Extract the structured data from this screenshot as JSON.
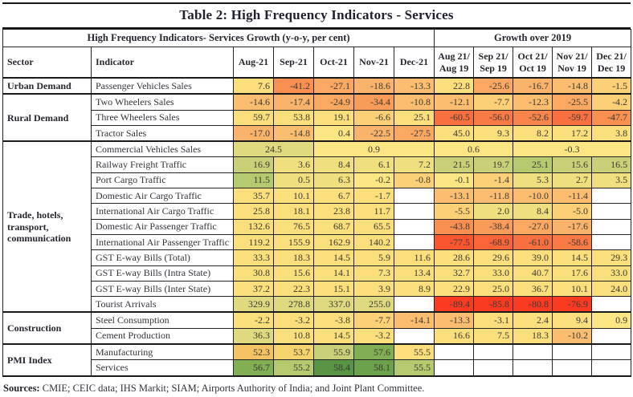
{
  "title": "Table 2: High Frequency Indicators - Services",
  "header": {
    "group_left": "High Frequency Indicators- Services Growth  (y-o-y, per cent)",
    "group_right": "Growth over 2019",
    "sector": "Sector",
    "indicator": "Indicator",
    "months": [
      "Aug-21",
      "Sep-21",
      "Oct-21",
      "Nov-21",
      "Dec-21"
    ],
    "growth": [
      {
        "l1": "Aug 21/",
        "l2": "Aug 19"
      },
      {
        "l1": "Sep 21/",
        "l2": "Sep 19"
      },
      {
        "l1": "Oct 21/",
        "l2": "Oct 19"
      },
      {
        "l1": "Nov 21/",
        "l2": "Nov 19"
      },
      {
        "l1": "Dec 21/",
        "l2": "Dec 19"
      }
    ]
  },
  "palette": {
    "w": "#FFFFFF",
    "r1": "#FB3A22",
    "rA": "#F9552F",
    "rB": "#F96438",
    "oA": "#F87040",
    "oB": "#F87A45",
    "oC": "#F8854B",
    "oD": "#F99051",
    "oE": "#F99B59",
    "oF": "#FAA862",
    "oG": "#FAB36B",
    "oH": "#FBBE71",
    "yO": "#FCD077",
    "y": "#FBDF7D",
    "yG": "#EFDF7E",
    "y2": "#FCE684",
    "gy1": "#DFDA7F",
    "gy2": "#C9D077",
    "gy3": "#B5C96E",
    "g2": "#82AE54",
    "g3": "#6CA24C",
    "g4": "#5A9546",
    "tA": "#F3C364",
    "tB": "#F5D46D"
  },
  "sections": [
    {
      "sector": "Urban Demand",
      "rows": [
        {
          "indicator": "Passenger Vehicles Sales",
          "cells": [
            [
              "7.6",
              "y"
            ],
            [
              "-41.2",
              "oD"
            ],
            [
              "-27.1",
              "oF"
            ],
            [
              "-18.6",
              "oG"
            ],
            [
              "-13.3",
              "oH"
            ],
            [
              "22.8",
              "y"
            ],
            [
              "-25.6",
              "oF"
            ],
            [
              "-16.7",
              "oG"
            ],
            [
              "-14.8",
              "oH"
            ],
            [
              "-1.5",
              "yO"
            ]
          ]
        }
      ]
    },
    {
      "sector": "Rural Demand",
      "rows": [
        {
          "indicator": "Two Wheelers Sales",
          "cells": [
            [
              "-14.6",
              "oH"
            ],
            [
              "-17.4",
              "oG"
            ],
            [
              "-24.9",
              "oF"
            ],
            [
              "-34.4",
              "oE"
            ],
            [
              "-10.8",
              "oH"
            ],
            [
              "-12.1",
              "oH"
            ],
            [
              "-7.7",
              "yO"
            ],
            [
              "-12.3",
              "oH"
            ],
            [
              "-25.5",
              "oF"
            ],
            [
              "-4.2",
              "yO"
            ]
          ]
        },
        {
          "indicator": "Three Wheelers Sales",
          "cells": [
            [
              "59.7",
              "y"
            ],
            [
              "53.8",
              "y"
            ],
            [
              "19.1",
              "y"
            ],
            [
              "-6.6",
              "yO"
            ],
            [
              "25.1",
              "y"
            ],
            [
              "-60.5",
              "oA"
            ],
            [
              "-56.0",
              "oB"
            ],
            [
              "-52.6",
              "oC"
            ],
            [
              "-59.7",
              "oA"
            ],
            [
              "-47.7",
              "oD"
            ]
          ]
        },
        {
          "indicator": "Tractor Sales",
          "cells": [
            [
              "-17.0",
              "oG"
            ],
            [
              "-14.8",
              "oH"
            ],
            [
              "0.4",
              "y2"
            ],
            [
              "-22.5",
              "oG"
            ],
            [
              "-27.5",
              "oF"
            ],
            [
              "45.0",
              "y"
            ],
            [
              "9.3",
              "y"
            ],
            [
              "8.2",
              "y"
            ],
            [
              "17.2",
              "y"
            ],
            [
              "3.8",
              "y"
            ]
          ]
        }
      ]
    },
    {
      "sector": "Trade, hotels, transport, communication",
      "rows": [
        {
          "indicator": "Commercial Vehicles Sales",
          "cells": [
            [
              "24.5",
              "gy1",
              2
            ],
            [
              "0.9",
              "y2",
              3
            ],
            [
              "0.6",
              "y2",
              2
            ],
            [
              "-0.3",
              "y2",
              3
            ]
          ]
        },
        {
          "indicator": "Railway Freight Traffic",
          "cells": [
            [
              "16.9",
              "gy2"
            ],
            [
              "3.6",
              "yG"
            ],
            [
              "8.4",
              "yG"
            ],
            [
              "6.1",
              "yG"
            ],
            [
              "7.2",
              "yG"
            ],
            [
              "21.5",
              "gy2"
            ],
            [
              "19.7",
              "gy2"
            ],
            [
              "25.1",
              "gy3"
            ],
            [
              "15.6",
              "gy2"
            ],
            [
              "16.5",
              "gy2"
            ]
          ]
        },
        {
          "indicator": "Port Cargo Traffic",
          "cells": [
            [
              "11.5",
              "gy3"
            ],
            [
              "0.5",
              "yG"
            ],
            [
              "6.3",
              "yG"
            ],
            [
              "-0.2",
              "y2"
            ],
            [
              "-0.8",
              "yO"
            ],
            [
              "-0.1",
              "y2"
            ],
            [
              "-1.4",
              "yO"
            ],
            [
              "5.3",
              "yG"
            ],
            [
              "2.7",
              "yG"
            ],
            [
              "3.5",
              "yG"
            ]
          ]
        },
        {
          "indicator": "Domestic Air Cargo Traffic",
          "cells": [
            [
              "35.7",
              "y"
            ],
            [
              "10.1",
              "y"
            ],
            [
              "6.7",
              "y"
            ],
            [
              "-1.7",
              "y"
            ],
            [
              "",
              "w"
            ],
            [
              "-13.1",
              "oH"
            ],
            [
              "-11.8",
              "oH"
            ],
            [
              "-10.0",
              "oH"
            ],
            [
              "-11.4",
              "oH"
            ],
            [
              "",
              "w"
            ]
          ]
        },
        {
          "indicator": "International Air Cargo Traffic",
          "cells": [
            [
              "25.8",
              "y"
            ],
            [
              "18.1",
              "y"
            ],
            [
              "23.8",
              "y"
            ],
            [
              "11.7",
              "y"
            ],
            [
              "",
              "w"
            ],
            [
              "-5.5",
              "yO"
            ],
            [
              "2.0",
              "yG"
            ],
            [
              "8.4",
              "yG"
            ],
            [
              "-5.0",
              "yO"
            ],
            [
              "",
              "w"
            ]
          ]
        },
        {
          "indicator": "Domestic Air Passenger Traffic",
          "cells": [
            [
              "132.6",
              "y"
            ],
            [
              "76.5",
              "y"
            ],
            [
              "68.7",
              "y"
            ],
            [
              "65.5",
              "y"
            ],
            [
              "",
              "w"
            ],
            [
              "-43.8",
              "oD"
            ],
            [
              "-38.4",
              "oE"
            ],
            [
              "-27.0",
              "oF"
            ],
            [
              "-17.6",
              "oG"
            ],
            [
              "",
              "w"
            ]
          ]
        },
        {
          "indicator": "International Air Passenger Traffic",
          "cells": [
            [
              "119.2",
              "y"
            ],
            [
              "155.9",
              "y"
            ],
            [
              "162.9",
              "y"
            ],
            [
              "140.2",
              "y"
            ],
            [
              "",
              "w"
            ],
            [
              "-77.5",
              "rA"
            ],
            [
              "-68.9",
              "rB"
            ],
            [
              "-61.0",
              "oA"
            ],
            [
              "-58.6",
              "oB"
            ],
            [
              "",
              "w"
            ]
          ]
        },
        {
          "indicator": "GST E-way Bills (Total)",
          "cells": [
            [
              "33.3",
              "y"
            ],
            [
              "18.3",
              "y"
            ],
            [
              "14.5",
              "y"
            ],
            [
              "5.9",
              "y"
            ],
            [
              "11.6",
              "y"
            ],
            [
              "28.6",
              "y"
            ],
            [
              "29.6",
              "y"
            ],
            [
              "39.0",
              "y"
            ],
            [
              "14.5",
              "y"
            ],
            [
              "29.3",
              "y"
            ]
          ]
        },
        {
          "indicator": "GST E-way Bills (Intra State)",
          "cells": [
            [
              "30.8",
              "y"
            ],
            [
              "15.6",
              "y"
            ],
            [
              "14.1",
              "y"
            ],
            [
              "7.3",
              "y"
            ],
            [
              "13.4",
              "y"
            ],
            [
              "32.7",
              "y"
            ],
            [
              "33.0",
              "y"
            ],
            [
              "40.7",
              "y"
            ],
            [
              "17.6",
              "y"
            ],
            [
              "33.0",
              "y"
            ]
          ]
        },
        {
          "indicator": "GST E-way Bills (Inter State)",
          "cells": [
            [
              "37.2",
              "y"
            ],
            [
              "22.3",
              "y"
            ],
            [
              "15.1",
              "y"
            ],
            [
              "3.9",
              "y"
            ],
            [
              "8.9",
              "y"
            ],
            [
              "22.9",
              "y"
            ],
            [
              "25.0",
              "y"
            ],
            [
              "36.7",
              "y"
            ],
            [
              "10.1",
              "y"
            ],
            [
              "24.0",
              "y"
            ]
          ]
        },
        {
          "indicator": "Tourist Arrivals",
          "cells": [
            [
              "329.9",
              "gy1"
            ],
            [
              "278.8",
              "gy1"
            ],
            [
              "337.0",
              "gy1"
            ],
            [
              "255.0",
              "gy1"
            ],
            [
              "",
              "w"
            ],
            [
              "-89.4",
              "r1"
            ],
            [
              "-85.8",
              "r1"
            ],
            [
              "-80.8",
              "r1"
            ],
            [
              "-76.9",
              "r1"
            ],
            [
              "",
              "w"
            ]
          ]
        }
      ]
    },
    {
      "sector": "Construction",
      "rows": [
        {
          "indicator": "Steel Consumption",
          "cells": [
            [
              "-2.2",
              "y"
            ],
            [
              "-3.2",
              "y"
            ],
            [
              "-3.8",
              "y"
            ],
            [
              "-7.7",
              "yO"
            ],
            [
              "-14.1",
              "oH"
            ],
            [
              "-13.3",
              "oH"
            ],
            [
              "-3.1",
              "y"
            ],
            [
              "2.4",
              "y"
            ],
            [
              "9.4",
              "y"
            ],
            [
              "0.9",
              "y2"
            ]
          ]
        },
        {
          "indicator": "Cement Production",
          "cells": [
            [
              "36.3",
              "gy1"
            ],
            [
              "10.8",
              "y"
            ],
            [
              "14.5",
              "y"
            ],
            [
              "-3.2",
              "y"
            ],
            [
              "",
              "w"
            ],
            [
              "16.6",
              "y"
            ],
            [
              "7.5",
              "y"
            ],
            [
              "18.3",
              "y"
            ],
            [
              "-10.2",
              "oH"
            ],
            [
              "",
              "w"
            ]
          ]
        }
      ]
    },
    {
      "sector": "PMI Index",
      "rows": [
        {
          "indicator": "Manufacturing",
          "cells": [
            [
              "52.3",
              "tA"
            ],
            [
              "53.7",
              "tB"
            ],
            [
              "55.9",
              "gy2"
            ],
            [
              "57.6",
              "g2"
            ],
            [
              "55.5",
              "y"
            ],
            [
              "",
              "w"
            ],
            [
              "",
              "w"
            ],
            [
              "",
              "w"
            ],
            [
              "",
              "w"
            ],
            [
              "",
              "w"
            ]
          ]
        },
        {
          "indicator": "Services",
          "cells": [
            [
              "56.7",
              "g2"
            ],
            [
              "55.2",
              "gy3"
            ],
            [
              "58.4",
              "g4"
            ],
            [
              "58.1",
              "g3"
            ],
            [
              "55.5",
              "gy3"
            ],
            [
              "",
              "w"
            ],
            [
              "",
              "w"
            ],
            [
              "",
              "w"
            ],
            [
              "",
              "w"
            ],
            [
              "",
              "w"
            ]
          ]
        }
      ]
    }
  ],
  "sources": {
    "label": "Sources:",
    "text": " CMIE; CEIC data; IHS Markit; SIAM; Airports Authority of India; and Joint Plant Committee."
  }
}
